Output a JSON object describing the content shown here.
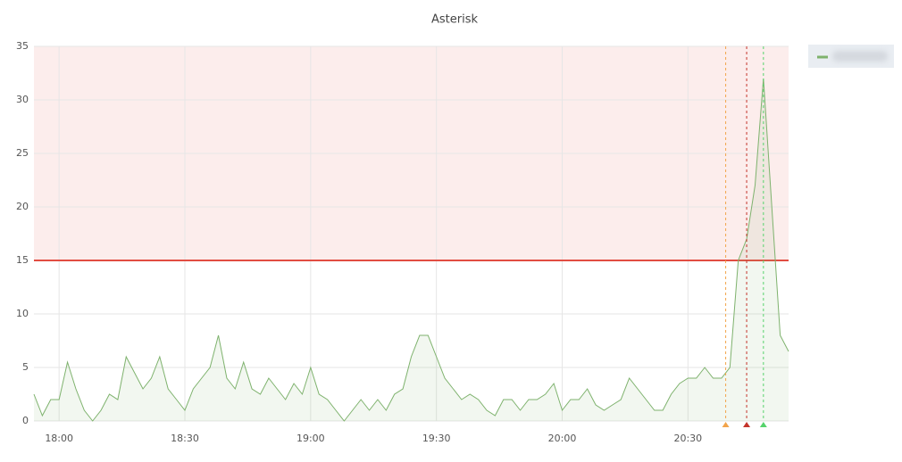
{
  "chart_data": {
    "type": "line",
    "title": "Asterisk",
    "x": [
      "17:54",
      "17:56",
      "17:58",
      "18:00",
      "18:02",
      "18:04",
      "18:06",
      "18:08",
      "18:10",
      "18:12",
      "18:14",
      "18:16",
      "18:18",
      "18:20",
      "18:22",
      "18:24",
      "18:26",
      "18:28",
      "18:30",
      "18:32",
      "18:34",
      "18:36",
      "18:38",
      "18:40",
      "18:42",
      "18:44",
      "18:46",
      "18:48",
      "18:50",
      "18:52",
      "18:54",
      "18:56",
      "18:58",
      "19:00",
      "19:02",
      "19:04",
      "19:06",
      "19:08",
      "19:10",
      "19:12",
      "19:14",
      "19:16",
      "19:18",
      "19:20",
      "19:22",
      "19:24",
      "19:26",
      "19:28",
      "19:30",
      "19:32",
      "19:34",
      "19:36",
      "19:38",
      "19:40",
      "19:42",
      "19:44",
      "19:46",
      "19:48",
      "19:50",
      "19:52",
      "19:54",
      "19:56",
      "19:58",
      "20:00",
      "20:02",
      "20:04",
      "20:06",
      "20:08",
      "20:10",
      "20:12",
      "20:14",
      "20:16",
      "20:18",
      "20:20",
      "20:22",
      "20:24",
      "20:26",
      "20:28",
      "20:30",
      "20:32",
      "20:34",
      "20:36",
      "20:38",
      "20:40",
      "20:42",
      "20:44",
      "20:46",
      "20:48",
      "20:50",
      "20:52",
      "20:54"
    ],
    "series": [
      {
        "color": "#7eb26d",
        "values": [
          2.5,
          0.5,
          2,
          2,
          5.5,
          3,
          1,
          0,
          1,
          2.5,
          2,
          6,
          4.5,
          3,
          4,
          6,
          3,
          2,
          1,
          3,
          4,
          5,
          8,
          4,
          3,
          5.5,
          3,
          2.5,
          4,
          3,
          2,
          3.5,
          2.5,
          5,
          2.5,
          2,
          1,
          0,
          1,
          2,
          1,
          2,
          1,
          2.5,
          3,
          6,
          8,
          8,
          6,
          4,
          3,
          2,
          2.5,
          2,
          1,
          0.5,
          2,
          2,
          1,
          2,
          2,
          2.5,
          3.5,
          1,
          2,
          2,
          3,
          1.5,
          1,
          1.5,
          2,
          4,
          3,
          2,
          1,
          1,
          2.5,
          3.5,
          4,
          4,
          5,
          4,
          4,
          5,
          15,
          17,
          22,
          32,
          20,
          8,
          6.5
        ]
      }
    ],
    "xlim": [
      "17:54",
      "20:54"
    ],
    "xticks": [
      "18:00",
      "18:30",
      "19:00",
      "19:30",
      "20:00",
      "20:30"
    ],
    "ylim": [
      0,
      35
    ],
    "yticks": [
      0,
      5,
      10,
      15,
      20,
      25,
      30,
      35
    ],
    "grid": true,
    "threshold": {
      "value": 15,
      "color": "#e24d42"
    },
    "annotations": [
      {
        "x": "20:39",
        "color": "#f2a44a"
      },
      {
        "x": "20:44",
        "color": "#c4342b"
      },
      {
        "x": "20:48",
        "color": "#56d36b"
      }
    ]
  }
}
